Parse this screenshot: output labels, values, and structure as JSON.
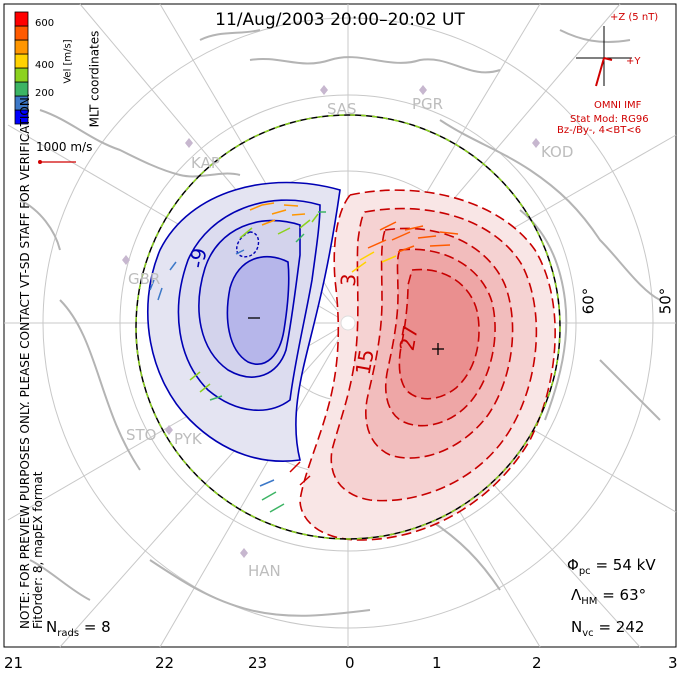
{
  "title": "11/Aug/2003 20:00–20:02 UT",
  "velocity_scale": {
    "label": "Vel [m/s]",
    "ticks": [
      "600",
      "400",
      "200"
    ],
    "colors": [
      "#0000ff",
      "#3c78c8",
      "#3cb464",
      "#8cd21e",
      "#ffd200",
      "#ff9600",
      "#ff5a00",
      "#ff0000"
    ]
  },
  "coordinates_label": "MLT coordinates",
  "reference_vector": "1000 m/s",
  "side_note": {
    "line1": "NOTE: FOR PREVIEW PURPOSES ONLY. PLEASE CONTACT VT-SD STAFF FOR VERIFICATION.",
    "line2": "FitOrder: 8, mapEX format"
  },
  "imf": {
    "axis_z": "+Z (5 nT)",
    "axis_y": "+Y",
    "source": "OMNI IMF",
    "stat_model": "Stat Mod: RG96",
    "condition": "Bz-/By-, 4<BT<6"
  },
  "stations": [
    "SAS",
    "PGR",
    "KAP",
    "KOD",
    "GBR",
    "STO",
    "PYK",
    "HAN"
  ],
  "lat_labels": [
    "60°",
    "50°"
  ],
  "mlt_labels": [
    "21",
    "22",
    "23",
    "0",
    "1",
    "2",
    "3"
  ],
  "contours": {
    "negative_labels": [
      "-9",
      "-"
    ],
    "positive_labels": [
      "3",
      "15",
      "27",
      "+"
    ]
  },
  "stats": {
    "phi_pc": "= 54 kV",
    "lambda_hm": "= 63°",
    "n_vc": "= 242",
    "n_rads": "= 8"
  }
}
